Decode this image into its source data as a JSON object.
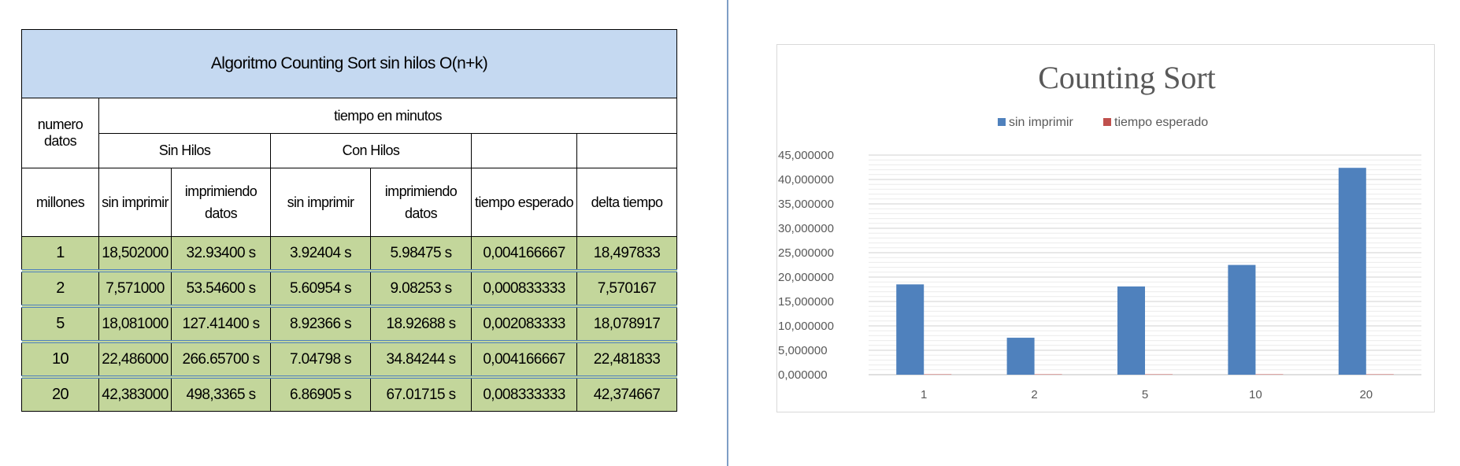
{
  "table": {
    "title": "Algoritmo Counting Sort sin hilos O(n+k)",
    "header": {
      "numero_datos": "numero datos",
      "tiempo_en_minutos": "tiempo en minutos",
      "sin_hilos": "Sin Hilos",
      "con_hilos": "Con Hilos",
      "millones": "millones",
      "sin_imprimir_1": "sin imprimir",
      "imprimiendo_1_a": "imprimiendo",
      "imprimiendo_1_b": "datos",
      "sin_imprimir_2": "sin imprimir",
      "imprimiendo_2_a": "imprimiendo",
      "imprimiendo_2_b": "datos",
      "tiempo_esperado": "tiempo esperado",
      "delta_tiempo": "delta tiempo"
    },
    "rows": [
      [
        "1",
        "18,502000",
        "32.93400 s",
        "3.92404 s",
        "5.98475 s",
        "0,004166667",
        "18,497833"
      ],
      [
        "2",
        "7,571000",
        "53.54600 s",
        "5.60954 s",
        "9.08253 s",
        "0,000833333",
        "7,570167"
      ],
      [
        "5",
        "18,081000",
        "127.41400 s",
        "8.92366 s",
        "18.92688 s",
        "0,002083333",
        "18,078917"
      ],
      [
        "10",
        "22,486000",
        "266.65700 s",
        "7.04798 s",
        "34.84244 s",
        "0,004166667",
        "22,481833"
      ],
      [
        "20",
        "42,383000",
        "498,3365 s",
        "6.86905 s",
        "67.01715 s",
        "0,008333333",
        "42,374667"
      ]
    ]
  },
  "chart_data": {
    "type": "bar",
    "title": "Counting Sort",
    "categories": [
      "1",
      "2",
      "5",
      "10",
      "20"
    ],
    "series": [
      {
        "name": "sin imprimir",
        "color": "#4f81bd",
        "values": [
          18.502,
          7.571,
          18.081,
          22.486,
          42.383
        ]
      },
      {
        "name": "tiempo esperado",
        "color": "#c0504d",
        "values": [
          0.004166667,
          0.000833333,
          0.002083333,
          0.004166667,
          0.008333333
        ]
      }
    ],
    "yticks": [
      "0,000000",
      "5,000000",
      "10,000000",
      "15,000000",
      "20,000000",
      "25,000000",
      "30,000000",
      "35,000000",
      "40,000000",
      "45,000000"
    ],
    "ylim": [
      0,
      45
    ],
    "ystep": 5,
    "grid": true,
    "legend_position": "top"
  }
}
